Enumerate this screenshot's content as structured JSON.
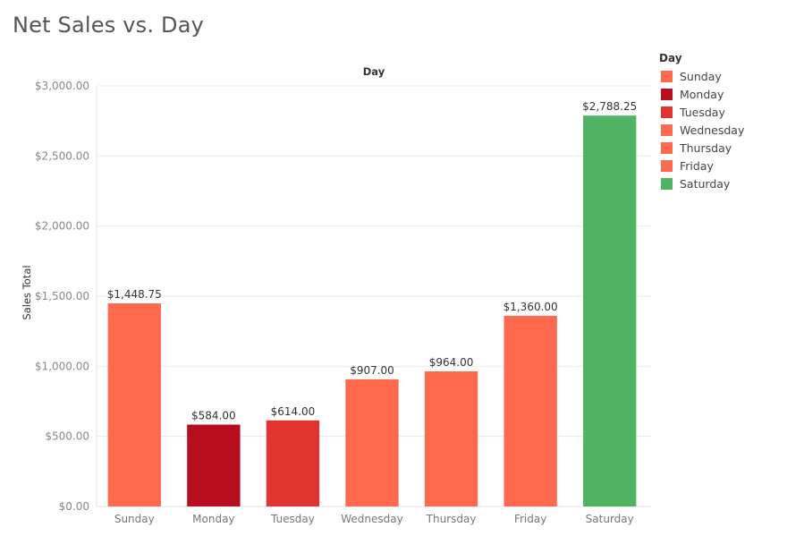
{
  "page": {
    "title": "Net Sales vs. Day"
  },
  "chart_data": {
    "type": "bar",
    "title": "Net Sales vs. Day",
    "column_header": "Day",
    "xlabel": "",
    "ylabel": "Sales Total",
    "categories": [
      "Sunday",
      "Monday",
      "Tuesday",
      "Wednesday",
      "Thursday",
      "Friday",
      "Saturday"
    ],
    "values": [
      1448.75,
      584.0,
      614.0,
      907.0,
      964.0,
      1360.0,
      2788.25
    ],
    "data_labels": [
      "$1,448.75",
      "$584.00",
      "$614.00",
      "$907.00",
      "$964.00",
      "$1,360.00",
      "$2,788.25"
    ],
    "colors": [
      "#ff694d",
      "#b70d1f",
      "#e13430",
      "#ff694d",
      "#ff694d",
      "#ff694d",
      "#50b364"
    ],
    "ylim": [
      0,
      3000
    ],
    "yticks": [
      0,
      500,
      1000,
      1500,
      2000,
      2500,
      3000
    ],
    "ytick_labels": [
      "$0.00",
      "$500.00",
      "$1,000.00",
      "$1,500.00",
      "$2,000.00",
      "$2,500.00",
      "$3,000.00"
    ],
    "grid": true,
    "legend": {
      "title": "Day",
      "placement": "right",
      "entries": [
        "Sunday",
        "Monday",
        "Tuesday",
        "Wednesday",
        "Thursday",
        "Friday",
        "Saturday"
      ]
    }
  }
}
